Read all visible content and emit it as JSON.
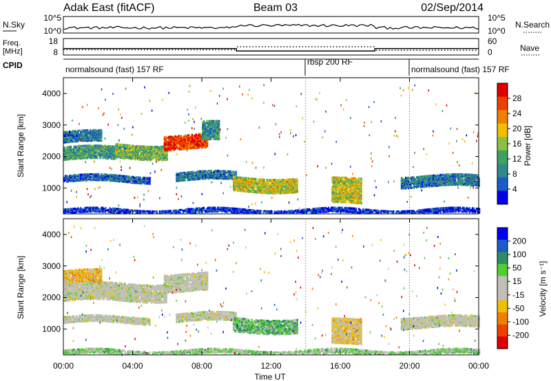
{
  "header": {
    "title": "Adak East (fitACF)",
    "beam": "Beam 03",
    "date": "02/Sep/2014"
  },
  "noise_panel": {
    "left_label": "N.Sky",
    "right_label": "N.Search",
    "left_ticks": [
      "10^5",
      "10^0"
    ],
    "right_ticks": [
      "10^5",
      "10^0"
    ]
  },
  "freq_panel": {
    "left_label_1": "Freq.",
    "left_label_2": "[MHz]",
    "left_ticks": [
      "18",
      "8"
    ],
    "right_label": "Nave",
    "right_ticks": [
      "60",
      "0"
    ],
    "segments": [
      {
        "t0": 0,
        "t1": 10,
        "freq": 11.8,
        "nave": 18
      },
      {
        "t0": 10,
        "t1": 18,
        "freq": 10.2,
        "nave": 30
      },
      {
        "t0": 18,
        "t1": 24,
        "freq": 11.8,
        "nave": 16
      }
    ]
  },
  "cpid": {
    "label": "CPID",
    "segments": [
      {
        "t0": 0,
        "t1": 14,
        "text": "normalsound (fast) 157 RF"
      },
      {
        "t0": 14,
        "t1": 20,
        "text": "rbsp 200 RF"
      },
      {
        "t0": 20,
        "t1": 24,
        "text": "normalsound (fast) 157 RF"
      }
    ]
  },
  "colors": {
    "power": [
      "#0000ee",
      "#1a5cc8",
      "#2f8a8a",
      "#3fa060",
      "#8cc040",
      "#f0c000",
      "#f08000",
      "#f04000",
      "#e00000"
    ],
    "velocity": [
      "#e00000",
      "#f04000",
      "#f08000",
      "#f0c000",
      "#c0c0b8",
      "#c0c0b8",
      "#50d030",
      "#2f8a6a",
      "#1a5cc8",
      "#0000ee"
    ]
  },
  "chart_data": [
    {
      "type": "heatmap",
      "panel": "power",
      "xlabel": "",
      "ylabel": "Slant Range [km]",
      "xlim": [
        0,
        24
      ],
      "ylim": [
        180,
        4500
      ],
      "xticks": [
        "00:00",
        "04:00",
        "08:00",
        "12:00",
        "16:00",
        "20:00",
        "00:00"
      ],
      "yticks": [
        1000,
        2000,
        3000,
        4000
      ],
      "colorbar": {
        "label": "Power [dB]",
        "range": [
          0,
          32
        ],
        "ticks": [
          4,
          8,
          12,
          16,
          20,
          24,
          28
        ]
      },
      "features": [
        {
          "t0": 0.0,
          "t1": 3.0,
          "r0": 1900,
          "r1": 2300,
          "level": 0.35
        },
        {
          "t0": 3.0,
          "t1": 6.0,
          "r0": 1950,
          "r1": 2400,
          "level": 0.45
        },
        {
          "t0": 5.8,
          "t1": 8.3,
          "r0": 2250,
          "r1": 2700,
          "level": 0.85
        },
        {
          "t0": 0.0,
          "t1": 2.2,
          "r0": 2450,
          "r1": 2800,
          "level": 0.25
        },
        {
          "t0": 8.0,
          "t1": 9.0,
          "r0": 2500,
          "r1": 3100,
          "level": 0.3
        },
        {
          "t0": 0.0,
          "t1": 5.0,
          "r0": 1200,
          "r1": 1400,
          "level": 0.2
        },
        {
          "t0": 6.5,
          "t1": 10.0,
          "r0": 1250,
          "r1": 1500,
          "level": 0.25
        },
        {
          "t0": 9.8,
          "t1": 13.5,
          "r0": 900,
          "r1": 1350,
          "level": 0.55
        },
        {
          "t0": 15.5,
          "t1": 17.2,
          "r0": 500,
          "r1": 1300,
          "level": 0.55
        },
        {
          "t0": 19.5,
          "t1": 24.0,
          "r0": 1050,
          "r1": 1400,
          "level": 0.25
        },
        {
          "t0": 0.0,
          "t1": 24.0,
          "r0": 200,
          "r1": 350,
          "level": 0.1
        }
      ]
    },
    {
      "type": "heatmap",
      "panel": "velocity",
      "xlabel": "Time UT",
      "ylabel": "Slant Range [km]",
      "xlim": [
        0,
        24
      ],
      "ylim": [
        180,
        4500
      ],
      "xticks": [
        "00:00",
        "04:00",
        "08:00",
        "12:00",
        "16:00",
        "20:00",
        "00:00"
      ],
      "yticks": [
        1000,
        2000,
        3000,
        4000
      ],
      "colorbar": {
        "label": "Velocity [m s⁻¹]",
        "ticks": [
          "200",
          "100",
          "50",
          "15",
          "-15",
          "-50",
          "-100",
          "-200"
        ]
      },
      "features": [
        {
          "t0": 0.0,
          "t1": 6.0,
          "r0": 1900,
          "r1": 2450,
          "level": 0.5
        },
        {
          "t0": 5.8,
          "t1": 8.3,
          "r0": 2200,
          "r1": 2750,
          "level": 0.5
        },
        {
          "t0": 0.0,
          "t1": 2.2,
          "r0": 2450,
          "r1": 2850,
          "level": 0.35
        },
        {
          "t0": 0.0,
          "t1": 5.0,
          "r0": 1200,
          "r1": 1400,
          "level": 0.5
        },
        {
          "t0": 6.5,
          "t1": 10.0,
          "r0": 1250,
          "r1": 1500,
          "level": 0.5
        },
        {
          "t0": 9.8,
          "t1": 13.5,
          "r0": 900,
          "r1": 1350,
          "level": 0.65
        },
        {
          "t0": 15.5,
          "t1": 17.2,
          "r0": 500,
          "r1": 1300,
          "level": 0.4
        },
        {
          "t0": 19.5,
          "t1": 24.0,
          "r0": 1050,
          "r1": 1400,
          "level": 0.5
        },
        {
          "t0": 0.0,
          "t1": 24.0,
          "r0": 200,
          "r1": 350,
          "level": 0.6
        }
      ]
    }
  ]
}
